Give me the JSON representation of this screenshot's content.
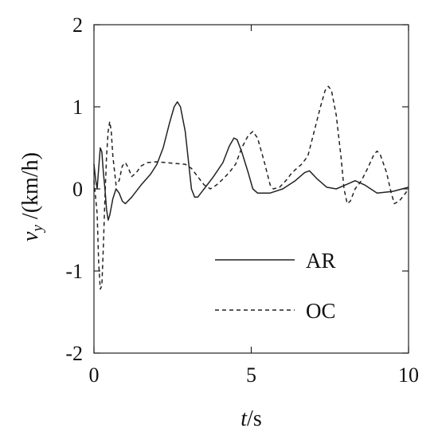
{
  "chart_data": {
    "type": "line",
    "title": "",
    "xlabel": "t/s",
    "xlabel_parts": {
      "symbol": "t",
      "unit": "/s"
    },
    "ylabel": "vy /(km/h)",
    "ylabel_parts": {
      "symbol": "v",
      "subscript": "y",
      "unit": " /(km/h)"
    },
    "xlim": [
      0,
      10
    ],
    "ylim": [
      -2,
      2
    ],
    "xticks": [
      0,
      5,
      10
    ],
    "xtick_labels": [
      "0",
      "5",
      "10"
    ],
    "yticks": [
      -2,
      -1,
      0,
      1,
      2
    ],
    "ytick_labels": [
      "-2",
      "-1",
      "0",
      "1",
      "2"
    ],
    "grid": false,
    "legend_position": "bottom-right",
    "series": [
      {
        "name": "AR",
        "style": "solid",
        "color": "#222222",
        "points": [
          [
            0,
            0.3
          ],
          [
            0.05,
            0.12
          ],
          [
            0.1,
            0.0
          ],
          [
            0.15,
            0.25
          ],
          [
            0.2,
            0.5
          ],
          [
            0.25,
            0.45
          ],
          [
            0.3,
            0.2
          ],
          [
            0.35,
            0.0
          ],
          [
            0.4,
            -0.25
          ],
          [
            0.45,
            -0.38
          ],
          [
            0.5,
            -0.32
          ],
          [
            0.6,
            -0.12
          ],
          [
            0.7,
            0.0
          ],
          [
            0.8,
            -0.05
          ],
          [
            0.9,
            -0.15
          ],
          [
            1.0,
            -0.18
          ],
          [
            1.2,
            -0.1
          ],
          [
            1.5,
            0.05
          ],
          [
            1.8,
            0.18
          ],
          [
            2.0,
            0.3
          ],
          [
            2.2,
            0.5
          ],
          [
            2.4,
            0.8
          ],
          [
            2.55,
            1.0
          ],
          [
            2.65,
            1.06
          ],
          [
            2.75,
            1.0
          ],
          [
            2.9,
            0.7
          ],
          [
            3.0,
            0.35
          ],
          [
            3.1,
            0.0
          ],
          [
            3.2,
            -0.1
          ],
          [
            3.3,
            -0.1
          ],
          [
            3.5,
            0.0
          ],
          [
            3.8,
            0.15
          ],
          [
            4.1,
            0.32
          ],
          [
            4.3,
            0.52
          ],
          [
            4.45,
            0.62
          ],
          [
            4.55,
            0.6
          ],
          [
            4.7,
            0.45
          ],
          [
            4.9,
            0.2
          ],
          [
            5.05,
            0.0
          ],
          [
            5.2,
            -0.05
          ],
          [
            5.6,
            -0.05
          ],
          [
            6.0,
            0.0
          ],
          [
            6.4,
            0.1
          ],
          [
            6.7,
            0.2
          ],
          [
            6.85,
            0.22
          ],
          [
            7.1,
            0.12
          ],
          [
            7.4,
            0.02
          ],
          [
            7.7,
            0.0
          ],
          [
            8.0,
            0.05
          ],
          [
            8.3,
            0.1
          ],
          [
            8.6,
            0.05
          ],
          [
            9.0,
            -0.05
          ],
          [
            9.5,
            -0.03
          ],
          [
            10,
            0.02
          ]
        ]
      },
      {
        "name": "OC",
        "style": "dashed",
        "color": "#222222",
        "points": [
          [
            0,
            0.1
          ],
          [
            0.1,
            -0.3
          ],
          [
            0.15,
            -0.9
          ],
          [
            0.2,
            -1.22
          ],
          [
            0.25,
            -1.18
          ],
          [
            0.3,
            -0.7
          ],
          [
            0.35,
            -0.1
          ],
          [
            0.4,
            0.4
          ],
          [
            0.45,
            0.7
          ],
          [
            0.5,
            0.82
          ],
          [
            0.55,
            0.7
          ],
          [
            0.6,
            0.4
          ],
          [
            0.7,
            0.05
          ],
          [
            0.8,
            0.1
          ],
          [
            0.9,
            0.28
          ],
          [
            1.0,
            0.32
          ],
          [
            1.1,
            0.25
          ],
          [
            1.2,
            0.15
          ],
          [
            1.35,
            0.2
          ],
          [
            1.5,
            0.28
          ],
          [
            1.7,
            0.32
          ],
          [
            2.0,
            0.33
          ],
          [
            2.3,
            0.32
          ],
          [
            2.6,
            0.31
          ],
          [
            2.9,
            0.3
          ],
          [
            3.1,
            0.25
          ],
          [
            3.3,
            0.15
          ],
          [
            3.5,
            0.05
          ],
          [
            3.7,
            0.0
          ],
          [
            3.9,
            0.05
          ],
          [
            4.1,
            0.12
          ],
          [
            4.3,
            0.2
          ],
          [
            4.5,
            0.3
          ],
          [
            4.7,
            0.5
          ],
          [
            4.9,
            0.65
          ],
          [
            5.05,
            0.7
          ],
          [
            5.2,
            0.62
          ],
          [
            5.4,
            0.35
          ],
          [
            5.6,
            0.05
          ],
          [
            5.7,
            0.0
          ],
          [
            5.9,
            0.02
          ],
          [
            6.1,
            0.1
          ],
          [
            6.3,
            0.2
          ],
          [
            6.6,
            0.3
          ],
          [
            6.8,
            0.4
          ],
          [
            7.0,
            0.7
          ],
          [
            7.2,
            1.0
          ],
          [
            7.35,
            1.2
          ],
          [
            7.45,
            1.25
          ],
          [
            7.55,
            1.2
          ],
          [
            7.7,
            0.9
          ],
          [
            7.85,
            0.4
          ],
          [
            7.95,
            0.0
          ],
          [
            8.05,
            -0.18
          ],
          [
            8.15,
            -0.15
          ],
          [
            8.3,
            0.0
          ],
          [
            8.5,
            0.1
          ],
          [
            8.7,
            0.25
          ],
          [
            8.9,
            0.42
          ],
          [
            9.0,
            0.46
          ],
          [
            9.1,
            0.42
          ],
          [
            9.3,
            0.2
          ],
          [
            9.45,
            -0.05
          ],
          [
            9.55,
            -0.18
          ],
          [
            9.7,
            -0.15
          ],
          [
            9.85,
            -0.08
          ],
          [
            10,
            0.0
          ]
        ]
      }
    ]
  }
}
